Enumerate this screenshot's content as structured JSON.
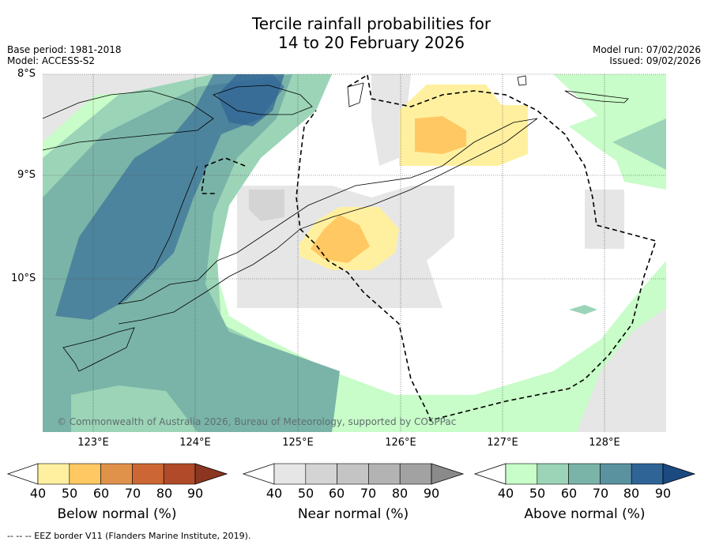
{
  "title": {
    "line1": "Tercile rainfall probabilities for",
    "line2": "14 to 20 February 2026"
  },
  "meta": {
    "base_period": "Base period: 1981-2018",
    "model": "Model: ACCESS-S2",
    "model_run": "Model run: 07/02/2026",
    "issued": "Issued: 09/02/2026"
  },
  "map": {
    "lat_labels": [
      "8°S",
      "9°S",
      "10°S"
    ],
    "lon_labels": [
      "123°E",
      "124°E",
      "125°E",
      "126°E",
      "127°E",
      "128°E"
    ],
    "copyright": "© Commonwealth of Australia 2026, Bureau of Meteorology, supported by COSPPac"
  },
  "colorbars": {
    "below": {
      "title": "Below normal (%)",
      "ticks": [
        "40",
        "50",
        "60",
        "70",
        "80",
        "90"
      ],
      "colors": [
        "#fff0a0",
        "#ffc862",
        "#e0924a",
        "#cc6634",
        "#b04a28",
        "#8c3520"
      ]
    },
    "near": {
      "title": "Near normal (%)",
      "ticks": [
        "40",
        "50",
        "60",
        "70",
        "80",
        "90"
      ],
      "colors": [
        "#e6e6e6",
        "#d4d4d4",
        "#c4c4c4",
        "#b3b3b3",
        "#a2a2a2",
        "#8a8a8a"
      ]
    },
    "above": {
      "title": "Above normal (%)",
      "ticks": [
        "40",
        "50",
        "60",
        "70",
        "80",
        "90"
      ],
      "colors": [
        "#c8fcc8",
        "#9cd4b8",
        "#7ab4a8",
        "#5a92a0",
        "#2f6496",
        "#1a4a80"
      ]
    }
  },
  "footer": "--  --  -- EEZ border V11 (Flanders Marine Institute, 2019)."
}
